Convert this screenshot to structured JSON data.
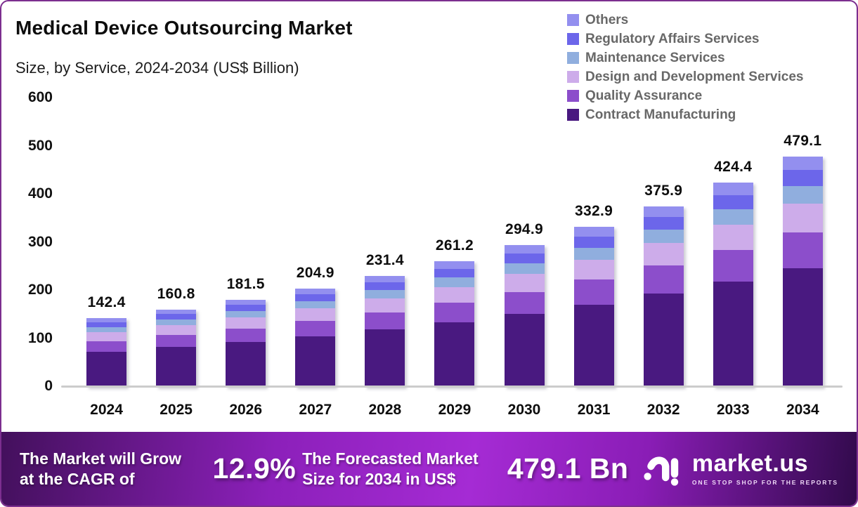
{
  "frame": {
    "border_color": "#7c2e8f",
    "background": "#ffffff"
  },
  "header": {
    "title": "Medical Device Outsourcing Market",
    "subtitle": "Size, by Service, 2024-2034 (US$ Billion)"
  },
  "legend": {
    "items": [
      {
        "label": "Others",
        "color": "#938fef"
      },
      {
        "label": "Regulatory Affairs Services",
        "color": "#6c66ea"
      },
      {
        "label": "Maintenance Services",
        "color": "#90aede"
      },
      {
        "label": "Design and Development Services",
        "color": "#cdacea"
      },
      {
        "label": "Quality Assurance",
        "color": "#8c4ecb"
      },
      {
        "label": "Contract Manufacturing",
        "color": "#491980"
      }
    ]
  },
  "chart_data": {
    "type": "bar",
    "stacked": true,
    "title": "Medical Device Outsourcing Market",
    "subtitle": "Size, by Service, 2024-2034 (US$ Billion)",
    "xlabel": "",
    "ylabel": "US$ Billion",
    "ylim": [
      0,
      600
    ],
    "yticks": [
      0,
      100,
      200,
      300,
      400,
      500,
      600
    ],
    "grid": false,
    "legend_position": "top-right",
    "categories": [
      "2024",
      "2025",
      "2026",
      "2027",
      "2028",
      "2029",
      "2030",
      "2031",
      "2032",
      "2033",
      "2034"
    ],
    "totals": [
      142.4,
      160.8,
      181.5,
      204.9,
      231.4,
      261.2,
      294.9,
      332.9,
      375.9,
      424.4,
      479.1
    ],
    "total_labels": [
      "142.4",
      "160.8",
      "181.5",
      "204.9",
      "231.4",
      "261.2",
      "294.9",
      "332.9",
      "375.9",
      "424.4",
      "479.1"
    ],
    "series": [
      {
        "name": "Contract Manufacturing",
        "color": "#491980",
        "values": [
          73.3,
          82.8,
          93.5,
          105.5,
          119.1,
          134.4,
          151.9,
          171.4,
          193.5,
          218.5,
          246.8
        ]
      },
      {
        "name": "Quality Assurance",
        "color": "#8c4ecb",
        "values": [
          22.1,
          24.9,
          28.1,
          31.8,
          35.9,
          40.5,
          45.7,
          51.6,
          58.3,
          65.8,
          74.3
        ]
      },
      {
        "name": "Design and Development Services",
        "color": "#cdacea",
        "values": [
          17.8,
          20.1,
          22.7,
          25.6,
          28.9,
          32.7,
          36.9,
          41.6,
          47.0,
          53.1,
          59.9
        ]
      },
      {
        "name": "Maintenance Services",
        "color": "#90aede",
        "values": [
          10.7,
          12.1,
          13.6,
          15.4,
          17.4,
          19.6,
          22.1,
          25.0,
          28.2,
          31.8,
          35.9
        ]
      },
      {
        "name": "Regulatory Affairs Services",
        "color": "#6c66ea",
        "values": [
          10.0,
          11.3,
          12.7,
          14.3,
          16.2,
          18.3,
          20.6,
          23.3,
          26.3,
          29.7,
          33.5
        ]
      },
      {
        "name": "Others",
        "color": "#938fef",
        "values": [
          8.5,
          9.6,
          10.9,
          12.3,
          13.9,
          15.7,
          17.7,
          20.0,
          22.6,
          25.5,
          28.7
        ]
      }
    ]
  },
  "banner": {
    "cagr_caption": "The Market will Grow\nat the CAGR of",
    "cagr_value": "12.9%",
    "forecast_caption": "The Forecasted Market\nSize for 2034 in US$",
    "forecast_value": "479.1 Bn",
    "brand_name": "market.us",
    "brand_tagline": "ONE STOP SHOP FOR THE REPORTS"
  }
}
